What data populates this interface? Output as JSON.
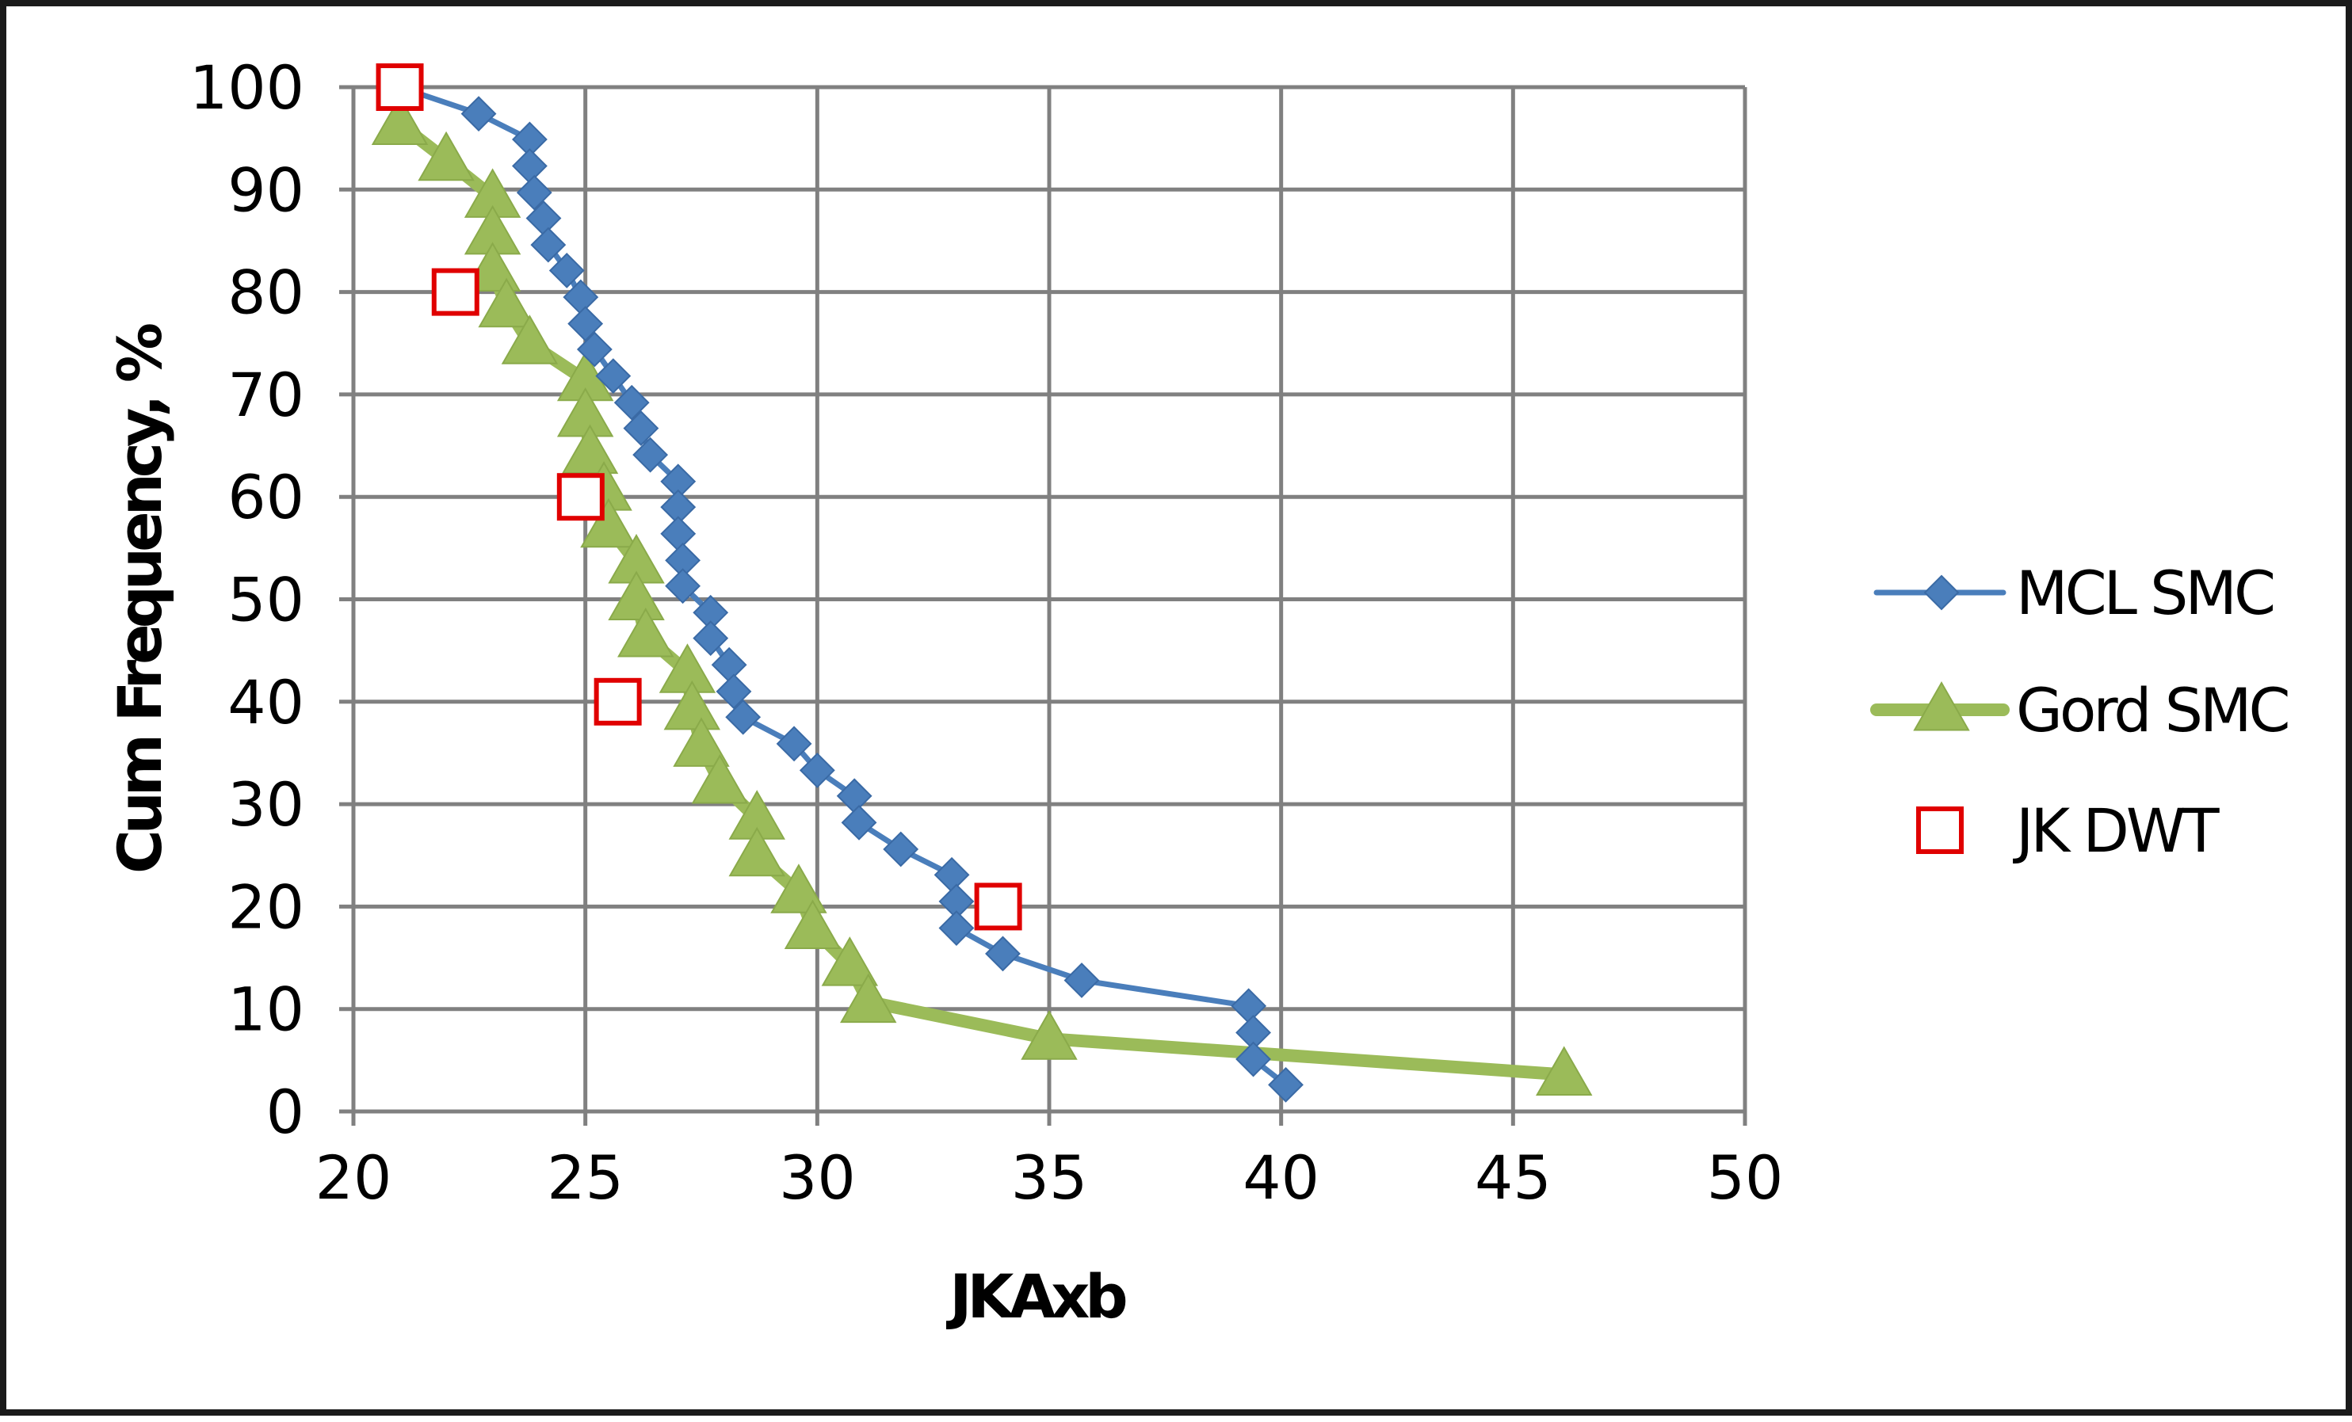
{
  "chart_data": {
    "type": "scatter",
    "title": "",
    "xlabel": "JKAxb",
    "ylabel": "Cum Frequency, %",
    "xlim": [
      20,
      50
    ],
    "ylim": [
      0,
      100
    ],
    "x_ticks": [
      20,
      25,
      30,
      35,
      40,
      45,
      50
    ],
    "y_ticks": [
      0,
      10,
      20,
      30,
      40,
      50,
      60,
      70,
      80,
      90,
      100
    ],
    "grid": true,
    "legend_position": "right",
    "series": [
      {
        "name": "MCL SMC",
        "color": "#4a7ebb",
        "marker": "diamond",
        "line": true,
        "points": [
          [
            21.0,
            100.0
          ],
          [
            22.7,
            97.4
          ],
          [
            23.8,
            94.9
          ],
          [
            23.8,
            92.3
          ],
          [
            23.9,
            89.7
          ],
          [
            24.1,
            87.2
          ],
          [
            24.2,
            84.6
          ],
          [
            24.6,
            82.1
          ],
          [
            24.9,
            79.5
          ],
          [
            25.0,
            76.9
          ],
          [
            25.2,
            74.4
          ],
          [
            25.6,
            71.8
          ],
          [
            26.0,
            69.2
          ],
          [
            26.2,
            66.7
          ],
          [
            26.4,
            64.1
          ],
          [
            27.0,
            61.5
          ],
          [
            27.0,
            59.0
          ],
          [
            27.0,
            56.4
          ],
          [
            27.1,
            53.8
          ],
          [
            27.1,
            51.3
          ],
          [
            27.7,
            48.7
          ],
          [
            27.7,
            46.2
          ],
          [
            28.1,
            43.6
          ],
          [
            28.2,
            41.0
          ],
          [
            28.4,
            38.5
          ],
          [
            29.5,
            35.9
          ],
          [
            30.0,
            33.3
          ],
          [
            30.8,
            30.8
          ],
          [
            30.9,
            28.2
          ],
          [
            31.8,
            25.6
          ],
          [
            32.9,
            23.1
          ],
          [
            33.0,
            20.5
          ],
          [
            33.0,
            17.9
          ],
          [
            34.0,
            15.4
          ],
          [
            35.7,
            12.8
          ],
          [
            39.3,
            10.3
          ],
          [
            39.4,
            7.7
          ],
          [
            39.4,
            5.1
          ],
          [
            40.1,
            2.6
          ]
        ]
      },
      {
        "name": "Gord SMC",
        "color": "#9bbb59",
        "marker": "triangle",
        "line": true,
        "points": [
          [
            21.0,
            96.4
          ],
          [
            22.0,
            92.9
          ],
          [
            23.0,
            89.3
          ],
          [
            23.0,
            85.7
          ],
          [
            23.0,
            82.1
          ],
          [
            23.3,
            78.6
          ],
          [
            23.8,
            75.0
          ],
          [
            25.0,
            71.4
          ],
          [
            25.0,
            67.9
          ],
          [
            25.1,
            64.3
          ],
          [
            25.4,
            60.7
          ],
          [
            25.5,
            57.1
          ],
          [
            26.1,
            53.6
          ],
          [
            26.1,
            50.0
          ],
          [
            26.3,
            46.4
          ],
          [
            27.2,
            42.9
          ],
          [
            27.3,
            39.3
          ],
          [
            27.5,
            35.7
          ],
          [
            27.9,
            32.1
          ],
          [
            28.7,
            28.6
          ],
          [
            28.7,
            25.0
          ],
          [
            29.6,
            21.4
          ],
          [
            29.9,
            17.9
          ],
          [
            30.7,
            14.3
          ],
          [
            31.1,
            10.7
          ],
          [
            35.0,
            7.1
          ],
          [
            46.1,
            3.6
          ]
        ]
      },
      {
        "name": "JK DWT",
        "color": "#e00000",
        "marker": "square-open",
        "line": false,
        "points": [
          [
            21.0,
            100.0
          ],
          [
            22.2,
            80.0
          ],
          [
            24.9,
            60.0
          ],
          [
            25.7,
            40.0
          ],
          [
            33.9,
            20.0
          ]
        ]
      }
    ]
  }
}
